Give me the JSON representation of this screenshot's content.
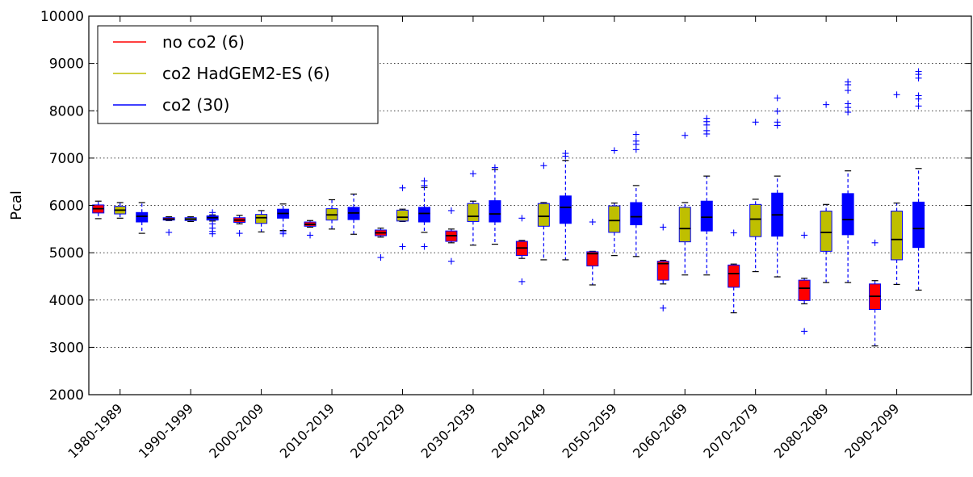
{
  "chart_data": {
    "type": "box",
    "title": "",
    "xlabel": "",
    "ylabel": "Pcal",
    "ylim": [
      2000,
      10000
    ],
    "yticks": [
      2000,
      3000,
      4000,
      5000,
      6000,
      7000,
      8000,
      9000,
      10000
    ],
    "grid": "horizontal dotted",
    "legend_position": "top-left",
    "categories": [
      "1980-1989",
      "1990-1999",
      "2000-2009",
      "2010-2019",
      "2020-2029",
      "2030-2039",
      "2040-2049",
      "2050-2059",
      "2060-2069",
      "2070-2079",
      "2080-2089",
      "2090-2099"
    ],
    "series": [
      {
        "name": "no co2 (6)",
        "color": "#ff0000",
        "boxes": [
          {
            "wlo": 5720,
            "q1": 5840,
            "med": 5930,
            "q3": 6010,
            "whi": 6090,
            "fliers": []
          },
          {
            "wlo": 5680,
            "q1": 5690,
            "med": 5710,
            "q3": 5740,
            "whi": 5760,
            "fliers": [
              5430
            ]
          },
          {
            "wlo": 5610,
            "q1": 5640,
            "med": 5690,
            "q3": 5740,
            "whi": 5790,
            "fliers": [
              5410
            ]
          },
          {
            "wlo": 5540,
            "q1": 5560,
            "med": 5600,
            "q3": 5650,
            "whi": 5680,
            "fliers": [
              5370
            ]
          },
          {
            "wlo": 5330,
            "q1": 5360,
            "med": 5420,
            "q3": 5480,
            "whi": 5520,
            "fliers": [
              4900
            ]
          },
          {
            "wlo": 5210,
            "q1": 5240,
            "med": 5360,
            "q3": 5460,
            "whi": 5500,
            "fliers": [
              4820,
              5890
            ]
          },
          {
            "wlo": 4880,
            "q1": 4940,
            "med": 5100,
            "q3": 5240,
            "whi": 5260,
            "fliers": [
              4390,
              5730
            ]
          },
          {
            "wlo": 4320,
            "q1": 4720,
            "med": 4980,
            "q3": 5020,
            "whi": 5030,
            "fliers": [
              5650
            ]
          },
          {
            "wlo": 4340,
            "q1": 4420,
            "med": 4770,
            "q3": 4820,
            "whi": 4840,
            "fliers": [
              3830,
              5540
            ]
          },
          {
            "wlo": 3730,
            "q1": 4270,
            "med": 4560,
            "q3": 4740,
            "whi": 4760,
            "fliers": [
              5420
            ]
          },
          {
            "wlo": 3920,
            "q1": 3990,
            "med": 4250,
            "q3": 4420,
            "whi": 4460,
            "fliers": [
              3340,
              5370
            ]
          },
          {
            "wlo": 3030,
            "q1": 3800,
            "med": 4080,
            "q3": 4340,
            "whi": 4410,
            "fliers": [
              5210
            ]
          }
        ]
      },
      {
        "name": "co2 HadGEM2-ES (6)",
        "color": "#bfbf00",
        "boxes": [
          {
            "wlo": 5730,
            "q1": 5820,
            "med": 5900,
            "q3": 5980,
            "whi": 6060,
            "fliers": []
          },
          {
            "wlo": 5660,
            "q1": 5680,
            "med": 5710,
            "q3": 5740,
            "whi": 5760,
            "fliers": []
          },
          {
            "wlo": 5440,
            "q1": 5620,
            "med": 5740,
            "q3": 5810,
            "whi": 5890,
            "fliers": []
          },
          {
            "wlo": 5500,
            "q1": 5690,
            "med": 5800,
            "q3": 5930,
            "whi": 6120,
            "fliers": []
          },
          {
            "wlo": 5660,
            "q1": 5670,
            "med": 5750,
            "q3": 5900,
            "whi": 5920,
            "fliers": [
              5130,
              6370
            ]
          },
          {
            "wlo": 5160,
            "q1": 5660,
            "med": 5770,
            "q3": 6040,
            "whi": 6090,
            "fliers": [
              6670
            ]
          },
          {
            "wlo": 4850,
            "q1": 5560,
            "med": 5770,
            "q3": 6040,
            "whi": 6060,
            "fliers": [
              6840
            ]
          },
          {
            "wlo": 4940,
            "q1": 5430,
            "med": 5680,
            "q3": 5990,
            "whi": 6050,
            "fliers": [
              7160
            ]
          },
          {
            "wlo": 4530,
            "q1": 5230,
            "med": 5510,
            "q3": 5960,
            "whi": 6060,
            "fliers": [
              7480
            ]
          },
          {
            "wlo": 4600,
            "q1": 5340,
            "med": 5710,
            "q3": 6020,
            "whi": 6130,
            "fliers": [
              7760
            ]
          },
          {
            "wlo": 4370,
            "q1": 5030,
            "med": 5430,
            "q3": 5880,
            "whi": 6020,
            "fliers": [
              8130
            ]
          },
          {
            "wlo": 4330,
            "q1": 4850,
            "med": 5280,
            "q3": 5880,
            "whi": 6050,
            "fliers": [
              8340
            ]
          }
        ]
      },
      {
        "name": "co2 (30)",
        "color": "#0000ff",
        "boxes": [
          {
            "wlo": 5410,
            "q1": 5650,
            "med": 5770,
            "q3": 5850,
            "whi": 6060,
            "fliers": []
          },
          {
            "wlo": 5670,
            "q1": 5690,
            "med": 5740,
            "q3": 5780,
            "whi": 5800,
            "fliers": [
              5400,
              5450,
              5520,
              5610,
              5850
            ]
          },
          {
            "wlo": 5470,
            "q1": 5730,
            "med": 5830,
            "q3": 5920,
            "whi": 6030,
            "fliers": [
              5400,
              5440
            ]
          },
          {
            "wlo": 5390,
            "q1": 5700,
            "med": 5840,
            "q3": 5960,
            "whi": 6240,
            "fliers": []
          },
          {
            "wlo": 5430,
            "q1": 5650,
            "med": 5830,
            "q3": 5960,
            "whi": 6380,
            "fliers": [
              5130,
              6420,
              6520
            ]
          },
          {
            "wlo": 5180,
            "q1": 5650,
            "med": 5820,
            "q3": 6100,
            "whi": 6760,
            "fliers": [
              6800
            ]
          },
          {
            "wlo": 4850,
            "q1": 5620,
            "med": 5960,
            "q3": 6200,
            "whi": 6950,
            "fliers": [
              7040,
              7100
            ]
          },
          {
            "wlo": 4920,
            "q1": 5590,
            "med": 5760,
            "q3": 6060,
            "whi": 6420,
            "fliers": [
              7180,
              7290,
              7360,
              7500
            ]
          },
          {
            "wlo": 4530,
            "q1": 5460,
            "med": 5750,
            "q3": 6090,
            "whi": 6620,
            "fliers": [
              7510,
              7580,
              7700,
              7770,
              7840
            ]
          },
          {
            "wlo": 4490,
            "q1": 5350,
            "med": 5800,
            "q3": 6260,
            "whi": 6620,
            "fliers": [
              7690,
              7760,
              7990,
              8270
            ]
          },
          {
            "wlo": 4370,
            "q1": 5380,
            "med": 5700,
            "q3": 6250,
            "whi": 6730,
            "fliers": [
              7970,
              8070,
              8150,
              8430,
              8550,
              8610
            ]
          },
          {
            "wlo": 4210,
            "q1": 5110,
            "med": 5510,
            "q3": 6070,
            "whi": 6780,
            "fliers": [
              8100,
              8250,
              8320,
              8690,
              8770,
              8830
            ]
          }
        ]
      }
    ]
  }
}
